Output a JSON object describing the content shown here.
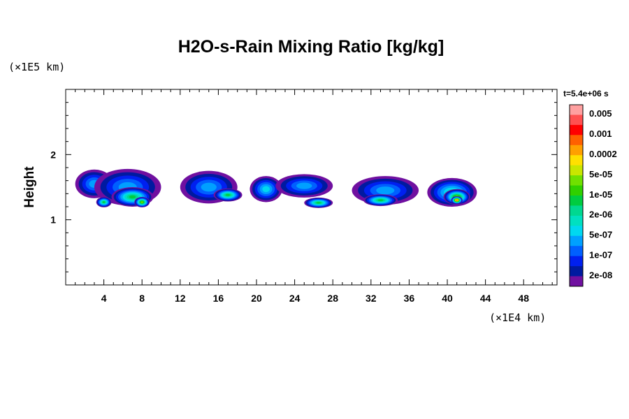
{
  "chart_data": {
    "type": "heatmap",
    "title": "H2O-s-Rain Mixing Ratio [kg/kg]",
    "xlabel": "",
    "ylabel": "Height",
    "x_unit": "(×1E4 km)",
    "y_unit": "(×1E5 km)",
    "time_label": "t=5.4e+06 s",
    "xlim": [
      0,
      51.5
    ],
    "ylim": [
      0,
      3
    ],
    "x_ticks": [
      "4",
      "8",
      "12",
      "16",
      "20",
      "24",
      "28",
      "32",
      "36",
      "40",
      "44",
      "48"
    ],
    "y_ticks": [
      "1",
      "2"
    ],
    "colorbar": {
      "levels": [
        {
          "color": "#ffa0a0",
          "label": "0.005"
        },
        {
          "color": "#ff5050",
          "label": ""
        },
        {
          "color": "#ff0000",
          "label": "0.001"
        },
        {
          "color": "#ff6000",
          "label": ""
        },
        {
          "color": "#ffa000",
          "label": "0.0002"
        },
        {
          "color": "#ffe000",
          "label": ""
        },
        {
          "color": "#c8e600",
          "label": "5e-05"
        },
        {
          "color": "#70e000",
          "label": ""
        },
        {
          "color": "#30d000",
          "label": "1e-05"
        },
        {
          "color": "#00cc40",
          "label": ""
        },
        {
          "color": "#00d890",
          "label": "2e-06"
        },
        {
          "color": "#00e0c0",
          "label": ""
        },
        {
          "color": "#00d8f0",
          "label": "5e-07"
        },
        {
          "color": "#00a0ff",
          "label": ""
        },
        {
          "color": "#0060ff",
          "label": "1e-07"
        },
        {
          "color": "#0020f0",
          "label": ""
        },
        {
          "color": "#001aa0",
          "label": "2e-08"
        },
        {
          "color": "#7010a0",
          "label": ""
        }
      ]
    },
    "cells": [
      {
        "x": 3,
        "y": 1.55,
        "rx": 2.0,
        "ry": 0.22,
        "level": 13
      },
      {
        "x": 6.5,
        "y": 1.5,
        "rx": 3.5,
        "ry": 0.28,
        "level": 13
      },
      {
        "x": 7,
        "y": 1.35,
        "rx": 2.2,
        "ry": 0.15,
        "level": 9
      },
      {
        "x": 8,
        "y": 1.27,
        "rx": 0.8,
        "ry": 0.08,
        "level": 7
      },
      {
        "x": 4,
        "y": 1.27,
        "rx": 0.8,
        "ry": 0.08,
        "level": 9
      },
      {
        "x": 15,
        "y": 1.5,
        "rx": 3.0,
        "ry": 0.25,
        "level": 13
      },
      {
        "x": 17,
        "y": 1.38,
        "rx": 1.5,
        "ry": 0.1,
        "level": 9
      },
      {
        "x": 21,
        "y": 1.47,
        "rx": 1.7,
        "ry": 0.2,
        "level": 12
      },
      {
        "x": 25,
        "y": 1.52,
        "rx": 3.0,
        "ry": 0.18,
        "level": 13
      },
      {
        "x": 26.5,
        "y": 1.26,
        "rx": 1.5,
        "ry": 0.08,
        "level": 9
      },
      {
        "x": 33.5,
        "y": 1.45,
        "rx": 3.5,
        "ry": 0.22,
        "level": 13
      },
      {
        "x": 33,
        "y": 1.3,
        "rx": 1.8,
        "ry": 0.09,
        "level": 9
      },
      {
        "x": 40.5,
        "y": 1.42,
        "rx": 2.6,
        "ry": 0.22,
        "level": 11
      },
      {
        "x": 41,
        "y": 1.35,
        "rx": 1.4,
        "ry": 0.12,
        "level": 7
      },
      {
        "x": 41,
        "y": 1.3,
        "rx": 0.6,
        "ry": 0.06,
        "level": 3
      }
    ]
  }
}
